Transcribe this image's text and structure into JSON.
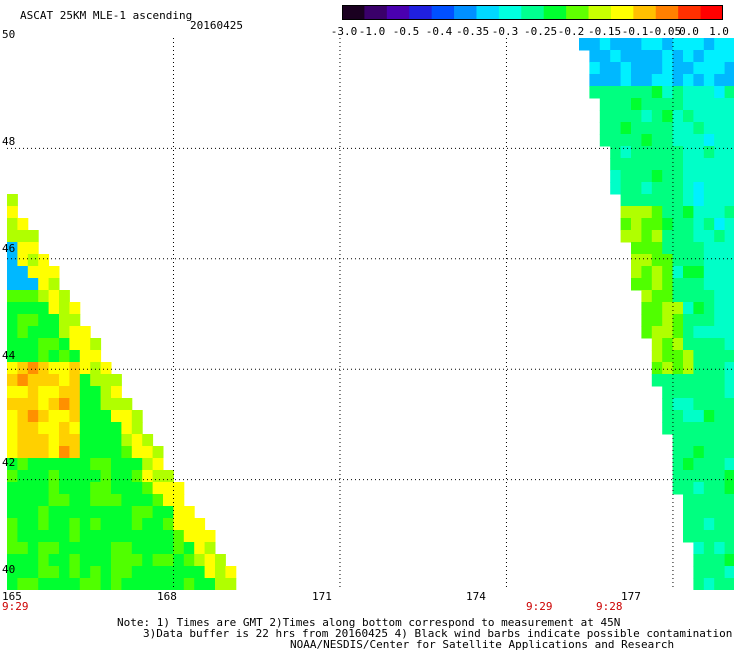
{
  "header": {
    "product": "ASCAT 25KM MLE-1 ascending",
    "date": "20160425"
  },
  "colorbar": {
    "ticks": [
      "-3.0",
      "-1.0",
      "-0.5",
      "-0.4",
      "-0.35",
      "-0.3",
      "-0.25",
      "-0.2",
      "-0.15",
      "-0.1",
      "-0.05",
      "0.0",
      "1.0"
    ],
    "colors": [
      "#1a0020",
      "#3a006a",
      "#4a00b0",
      "#2020e0",
      "#0050ff",
      "#0090ff",
      "#00d8ff",
      "#00ffe0",
      "#00ff90",
      "#00ff30",
      "#60ff00",
      "#c8ff00",
      "#ffff00",
      "#ffc000",
      "#ff8000",
      "#ff3000",
      "#ff0000"
    ]
  },
  "map": {
    "lat_labels": [
      "50",
      "48",
      "46",
      "44",
      "42",
      "40"
    ],
    "lon_labels": [
      "165",
      "168",
      "171",
      "174",
      "177"
    ],
    "time_labels": [
      "9:29",
      "9:29",
      "9:28"
    ],
    "swaths": [
      {
        "id": "west",
        "lon_start": 165,
        "lat_top": 47.2,
        "value_range": [
          -0.35,
          -0.05
        ]
      },
      {
        "id": "east",
        "lon_start": 175.3,
        "lat_top": 50,
        "value_range": [
          -0.35,
          -0.15
        ]
      }
    ]
  },
  "notes": {
    "line1": "Note: 1) Times are GMT 2)Times along bottom correspond to measurement at 45N",
    "line2": "3)Data buffer is 22 hrs from 20160425 4) Black wind barbs indicate possible contamination",
    "line3": "NOAA/NESDIS/Center for Satellite Applications and Research"
  }
}
